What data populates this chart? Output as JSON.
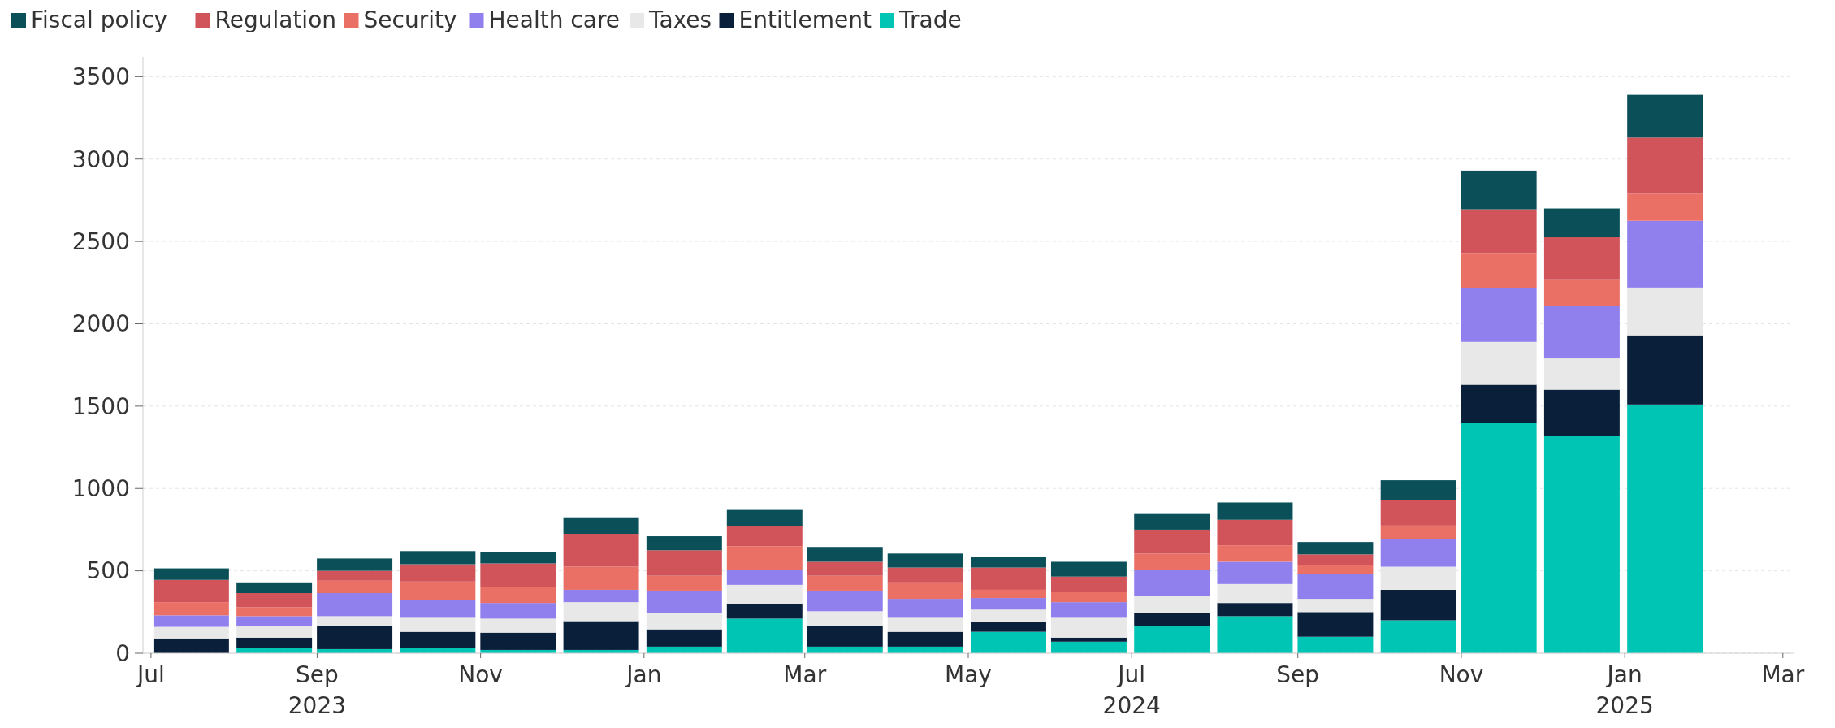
{
  "chart_data": {
    "type": "bar",
    "stacked": true,
    "x": [
      "2023-07-16",
      "2023-08-16",
      "2023-09-15",
      "2023-10-16",
      "2023-11-15",
      "2023-12-16",
      "2024-01-16",
      "2024-02-15",
      "2024-03-16",
      "2024-04-15",
      "2024-05-16",
      "2024-06-15",
      "2024-07-16",
      "2024-08-16",
      "2024-09-15",
      "2024-10-16",
      "2024-11-15",
      "2024-12-16",
      "2025-01-16"
    ],
    "series": [
      {
        "name": "Trade",
        "color": "#00c5b5",
        "values": [
          null,
          30,
          25,
          30,
          20,
          20,
          40,
          210,
          40,
          40,
          130,
          70,
          165,
          225,
          100,
          200,
          1400,
          1320,
          1510
        ]
      },
      {
        "name": "Entitlement",
        "color": "#0a1f3a",
        "values": [
          90,
          65,
          140,
          100,
          105,
          175,
          105,
          90,
          125,
          90,
          60,
          25,
          80,
          80,
          150,
          185,
          230,
          280,
          420
        ]
      },
      {
        "name": "Taxes",
        "color": "#e8e8e8",
        "values": [
          70,
          70,
          60,
          85,
          85,
          115,
          100,
          115,
          90,
          85,
          75,
          120,
          105,
          115,
          80,
          140,
          260,
          190,
          290
        ]
      },
      {
        "name": "Health care",
        "color": "#8f80ee",
        "values": [
          70,
          60,
          140,
          110,
          95,
          75,
          135,
          90,
          125,
          115,
          70,
          95,
          155,
          135,
          150,
          170,
          325,
          320,
          405
        ]
      },
      {
        "name": "Security",
        "color": "#ea7066",
        "values": [
          80,
          55,
          75,
          110,
          95,
          140,
          90,
          145,
          90,
          100,
          50,
          60,
          100,
          100,
          55,
          80,
          215,
          160,
          165
        ]
      },
      {
        "name": "Regulation",
        "color": "#d1545a",
        "values": [
          135,
          85,
          60,
          105,
          145,
          200,
          155,
          120,
          85,
          90,
          135,
          95,
          145,
          155,
          65,
          155,
          265,
          255,
          340
        ]
      },
      {
        "name": "Fiscal policy",
        "color": "#0b5058",
        "values": [
          70,
          65,
          75,
          80,
          70,
          100,
          85,
          100,
          90,
          85,
          65,
          90,
          95,
          105,
          75,
          120,
          235,
          175,
          260
        ]
      }
    ],
    "xlim": [
      "2023-06-28",
      "2025-03-05"
    ],
    "xticks": [
      {
        "value": "2023-07-01",
        "label": "Jul"
      },
      {
        "value": "2023-09-01",
        "label": "Sep\n2023"
      },
      {
        "value": "2023-11-01",
        "label": "Nov"
      },
      {
        "value": "2024-01-01",
        "label": "Jan"
      },
      {
        "value": "2024-03-01",
        "label": "Mar"
      },
      {
        "value": "2024-05-01",
        "label": "May"
      },
      {
        "value": "2024-07-01",
        "label": "Jul\n2024"
      },
      {
        "value": "2024-09-01",
        "label": "Sep"
      },
      {
        "value": "2024-11-01",
        "label": "Nov"
      },
      {
        "value": "2025-01-01",
        "label": "Jan\n2025"
      },
      {
        "value": "2025-03-01",
        "label": "Mar"
      }
    ],
    "ylim": [
      0,
      3620
    ],
    "yticks": [
      0,
      500,
      1000,
      1500,
      2000,
      2500,
      3000,
      3500
    ],
    "grid": "y",
    "legend": "top left"
  }
}
